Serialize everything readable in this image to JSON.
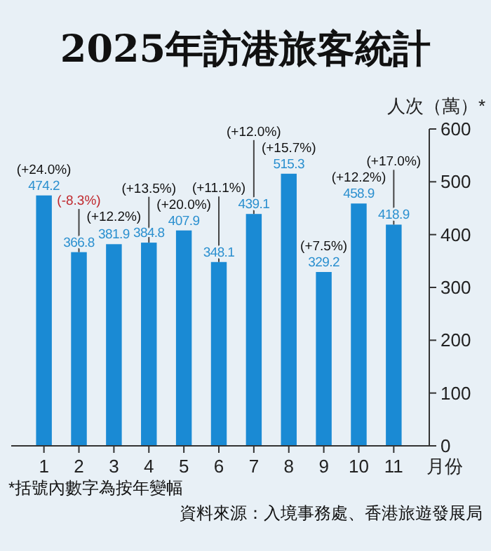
{
  "chart_data": {
    "type": "bar",
    "title": "2025年訪港旅客統計",
    "xlabel": "月份",
    "ylabel": "人次（萬）*",
    "categories": [
      "1",
      "2",
      "3",
      "4",
      "5",
      "6",
      "7",
      "8",
      "9",
      "10",
      "11"
    ],
    "values": [
      474.2,
      366.8,
      381.9,
      384.8,
      407.9,
      348.1,
      439.1,
      515.3,
      329.2,
      458.9,
      418.9
    ],
    "color": "#1a8ad4",
    "ylim": [
      0,
      600
    ],
    "yticks": [
      0,
      100,
      200,
      300,
      400,
      500,
      600
    ],
    "grid": false,
    "data_labels": true,
    "annotations": [
      {
        "text": "(+24.0%)",
        "x": "1",
        "y": 474.2
      },
      {
        "text": "(-8.3%)",
        "x": "2",
        "y": 366.8
      },
      {
        "text": "(+12.2%)",
        "x": "3",
        "y": 381.9
      },
      {
        "text": "(+13.5%)",
        "x": "4",
        "y": 384.8
      },
      {
        "text": "(+20.0%)",
        "x": "5",
        "y": 407.9
      },
      {
        "text": "(+11.1%)",
        "x": "6",
        "y": 348.1
      },
      {
        "text": "(+12.0%)",
        "x": "7",
        "y": 439.1
      },
      {
        "text": "(+15.7%)",
        "x": "8",
        "y": 515.3
      },
      {
        "text": "(+7.5%)",
        "x": "9",
        "y": 329.2
      },
      {
        "text": "(+12.2%)",
        "x": "10",
        "y": 458.9
      },
      {
        "text": "(+17.0%)",
        "x": "11",
        "y": 418.9
      },
      "*括號內數字為按年變幅",
      "資料來源：入境事務處、香港旅遊發展局"
    ]
  }
}
